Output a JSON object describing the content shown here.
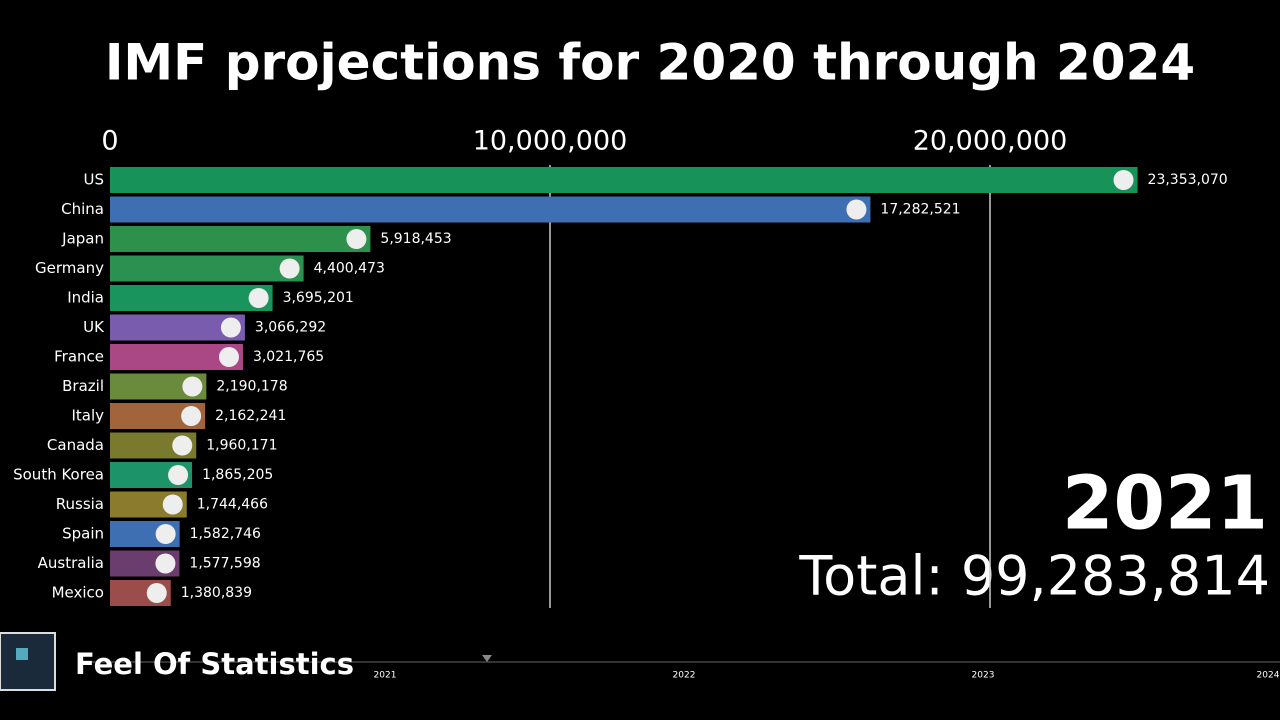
{
  "chart_data": {
    "type": "bar",
    "orientation": "horizontal",
    "title": "IMF projections for 2020 through 2024",
    "categories": [
      "US",
      "China",
      "Japan",
      "Germany",
      "India",
      "UK",
      "France",
      "Brazil",
      "Italy",
      "Canada",
      "South Korea",
      "Russia",
      "Spain",
      "Australia",
      "Mexico"
    ],
    "values": [
      23353070,
      17282521,
      5918453,
      4400473,
      3695201,
      3066292,
      3021765,
      2190178,
      2162241,
      1960171,
      1865205,
      1744466,
      1582746,
      1577598,
      1380839
    ],
    "value_labels": [
      "23,353,070",
      "17,282,521",
      "5,918,453",
      "4,400,473",
      "3,695,201",
      "3,066,292",
      "3,021,765",
      "2,190,178",
      "2,162,241",
      "1,960,171",
      "1,865,205",
      "1,744,466",
      "1,582,746",
      "1,577,598",
      "1,380,839"
    ],
    "colors": [
      "#17935a",
      "#3f6fb3",
      "#2d914c",
      "#2a9150",
      "#18945c",
      "#7a5cae",
      "#aa4886",
      "#6a8a3c",
      "#a2643a",
      "#7a7a2e",
      "#1d936a",
      "#8a7c2c",
      "#3f6fb3",
      "#6b3c6e",
      "#9a4d4a"
    ],
    "xlim": [
      0,
      26000000
    ],
    "xticks": [
      0,
      {
        "value": 10000000,
        "label": "10,000,000"
      },
      {
        "value": 20000000,
        "label": "20,000,000"
      }
    ],
    "grid": true
  },
  "year": "2021",
  "total": "Total: 99,283,814",
  "timeline": [
    "2021",
    "2022",
    "2023",
    "2024"
  ],
  "channel": "Feel Of Statistics"
}
